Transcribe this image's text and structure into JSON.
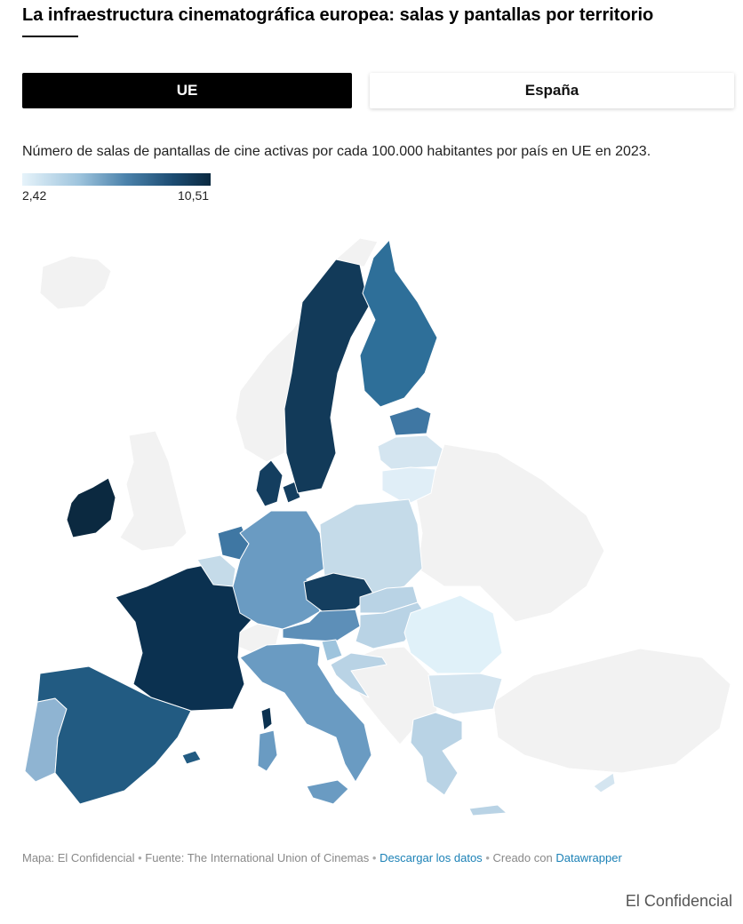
{
  "header": {
    "title": "La infraestructura cinematográfica europea: salas y pantallas por territorio"
  },
  "tabs": [
    {
      "label": "UE",
      "active": true
    },
    {
      "label": "España",
      "active": false
    }
  ],
  "map": {
    "subtitle": "Número de salas de pantallas de cine activas por cada 100.000 habitantes por país en UE en 2023.",
    "legend": {
      "min_label": "2,42",
      "max_label": "10,51",
      "min_color": "#e6f3fa",
      "max_color": "#0b2940"
    },
    "non_eu_color": "#f2f2f2",
    "border_color": "#ffffff"
  },
  "footer": {
    "map_credit": "Mapa: El Confidencial",
    "source": "Fuente: The International Union of Cinemas",
    "download_link": "Descargar los datos",
    "created_with": "Creado con",
    "tool_link": "Datawrapper",
    "separator": "•",
    "link_color": "#1b81b6"
  },
  "brand": "El Confidencial"
}
